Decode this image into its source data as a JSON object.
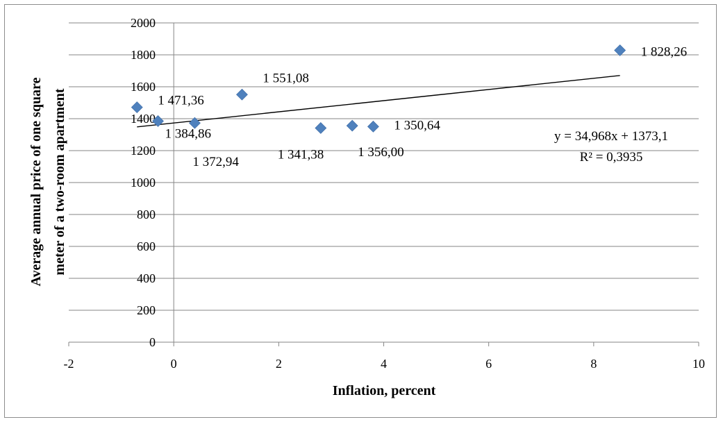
{
  "chart_data": {
    "type": "scatter",
    "xlabel": "Inflation,  percent",
    "ylabel_line1": "Average  annual price of one square",
    "ylabel_line2": "meter of a two-room  apartment",
    "xlim": [
      -2,
      10
    ],
    "ylim": [
      0,
      2000
    ],
    "xticks": [
      -2,
      0,
      2,
      4,
      6,
      8,
      10
    ],
    "yticks": [
      0,
      200,
      400,
      600,
      800,
      1000,
      1200,
      1400,
      1600,
      1800,
      2000
    ],
    "grid": "horizontal",
    "marker": "diamond",
    "marker_color": "#4f81bd",
    "points": [
      {
        "x": -0.7,
        "y": 1471.36,
        "label": "1 471,36"
      },
      {
        "x": -0.3,
        "y": 1384.86,
        "label": "1 384,86"
      },
      {
        "x": 0.4,
        "y": 1372.94,
        "label": "1 372,94"
      },
      {
        "x": 1.3,
        "y": 1551.08,
        "label": "1 551,08"
      },
      {
        "x": 2.8,
        "y": 1341.38,
        "label": "1 341,38"
      },
      {
        "x": 3.4,
        "y": 1356.0,
        "label": "1 356,00"
      },
      {
        "x": 3.8,
        "y": 1350.64,
        "label": "1 350,64"
      },
      {
        "x": 8.5,
        "y": 1828.26,
        "label": "1 828,26"
      }
    ],
    "trendline": {
      "type": "linear",
      "slope": 34.968,
      "intercept": 1373.1,
      "x_range": [
        -0.7,
        8.5
      ],
      "equation": "y = 34,968x   + 1373,1",
      "r_squared": "R² = 0,3935"
    }
  }
}
